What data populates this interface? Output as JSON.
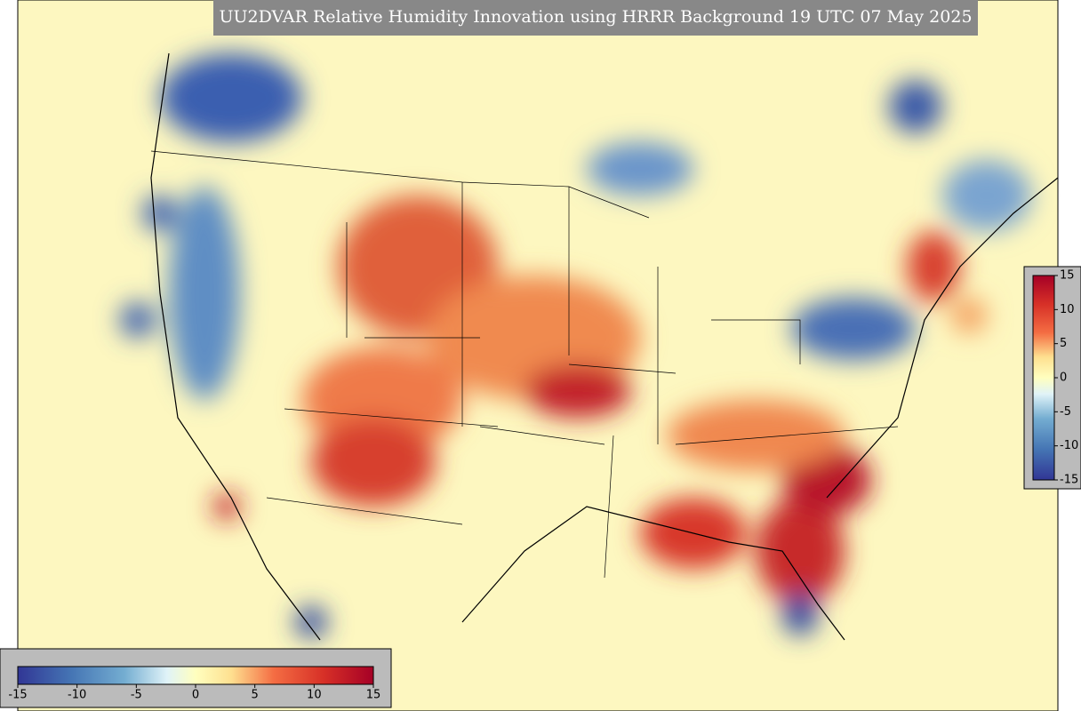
{
  "title": "UU2DVAR Relative Humidity Innovation using HRRR Background 19 UTC 07 May 2025",
  "colorbars": {
    "vertical": {
      "ticks": [
        15,
        10,
        5,
        0,
        -5,
        -10,
        -15
      ]
    },
    "horizontal": {
      "ticks": [
        -15,
        -10,
        -5,
        0,
        5,
        10,
        15
      ]
    }
  }
}
